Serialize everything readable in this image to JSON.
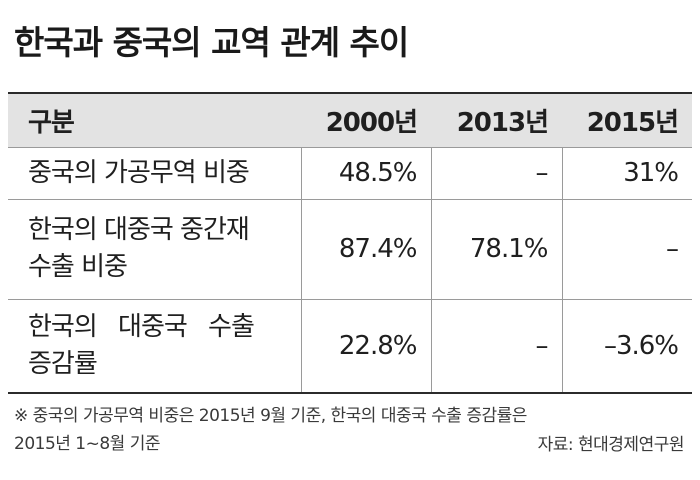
{
  "title": "한국과 중국의 교역 관계 추이",
  "table": {
    "headers": [
      "구분",
      "2000년",
      "2013년",
      "2015년"
    ],
    "rows": [
      {
        "label_lines": [
          "중국의 가공무역 비중"
        ],
        "values": [
          "48.5%",
          "–",
          "31%"
        ]
      },
      {
        "label_lines": [
          "한국의 대중국 중간재",
          "수출 비중"
        ],
        "values": [
          "87.4%",
          "78.1%",
          "–"
        ]
      },
      {
        "label_lines": [
          "한국의 대중국 수출",
          "증감률"
        ],
        "values": [
          "22.8%",
          "–",
          "–3.6%"
        ]
      }
    ]
  },
  "footnote": {
    "line1": "※ 중국의 가공무역 비중은 2015년 9월 기준, 한국의 대중국 수출 증감률은",
    "line2": "2015년 1~8월 기준"
  },
  "source": "자료: 현대경제연구원"
}
